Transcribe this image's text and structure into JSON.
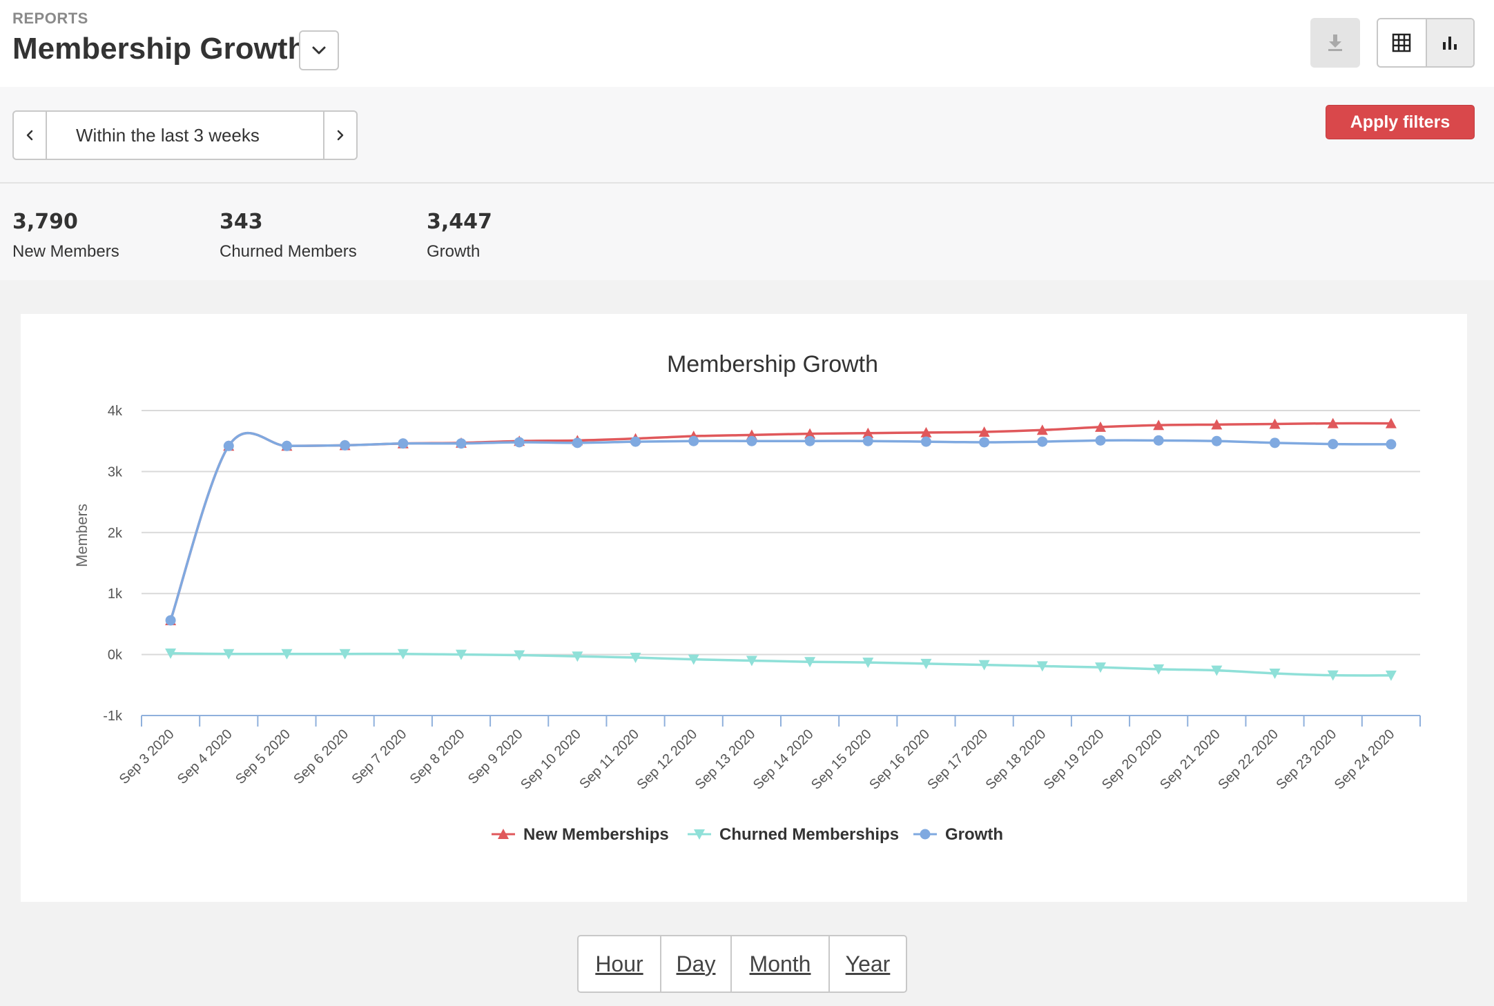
{
  "header": {
    "eyebrow": "REPORTS",
    "title": "Membership Growth",
    "icons": {
      "title_dropdown": "chevron-down-icon",
      "download": "download-icon",
      "table_view": "table-grid-icon",
      "chart_view": "bar-chart-icon"
    }
  },
  "filters": {
    "date_range_label": "Within the last 3 weeks",
    "apply_label": "Apply filters",
    "apply_color": "#d9484b"
  },
  "summary": [
    {
      "value": "3,790",
      "label": "New Members"
    },
    {
      "value": "343",
      "label": "Churned Members"
    },
    {
      "value": "3,447",
      "label": "Growth"
    }
  ],
  "granularity": [
    "Hour",
    "Day",
    "Month",
    "Year"
  ],
  "chart_data": {
    "type": "line",
    "title": "Membership Growth",
    "ylabel": "Members",
    "xlabel": "",
    "ylim": [
      -1000,
      4000
    ],
    "yticks": [
      -1000,
      0,
      1000,
      2000,
      3000,
      4000
    ],
    "ytick_labels": [
      "-1k",
      "0k",
      "1k",
      "2k",
      "3k",
      "4k"
    ],
    "grid": true,
    "legend_position": "bottom",
    "categories": [
      "Sep 3 2020",
      "Sep 4 2020",
      "Sep 5 2020",
      "Sep 6 2020",
      "Sep 7 2020",
      "Sep 8 2020",
      "Sep 9 2020",
      "Sep 10 2020",
      "Sep 11 2020",
      "Sep 12 2020",
      "Sep 13 2020",
      "Sep 14 2020",
      "Sep 15 2020",
      "Sep 16 2020",
      "Sep 17 2020",
      "Sep 18 2020",
      "Sep 19 2020",
      "Sep 20 2020",
      "Sep 21 2020",
      "Sep 22 2020",
      "Sep 23 2020",
      "Sep 24 2020"
    ],
    "series": [
      {
        "name": "New Memberships",
        "color": "#e0585b",
        "marker": "triangle-up",
        "values": [
          560,
          3420,
          3420,
          3430,
          3460,
          3470,
          3500,
          3510,
          3540,
          3580,
          3600,
          3620,
          3630,
          3640,
          3650,
          3680,
          3730,
          3760,
          3770,
          3780,
          3790,
          3790
        ]
      },
      {
        "name": "Churned Memberships",
        "color": "#8fe0d8",
        "marker": "triangle-down",
        "values": [
          20,
          10,
          10,
          10,
          10,
          0,
          -10,
          -30,
          -50,
          -80,
          -100,
          -120,
          -130,
          -150,
          -170,
          -190,
          -210,
          -240,
          -260,
          -310,
          -340,
          -343
        ]
      },
      {
        "name": "Growth",
        "color": "#7fa9e0",
        "marker": "circle",
        "values": [
          560,
          3420,
          3420,
          3430,
          3460,
          3460,
          3480,
          3470,
          3490,
          3500,
          3500,
          3500,
          3500,
          3490,
          3480,
          3490,
          3510,
          3510,
          3500,
          3470,
          3450,
          3447
        ]
      }
    ]
  }
}
